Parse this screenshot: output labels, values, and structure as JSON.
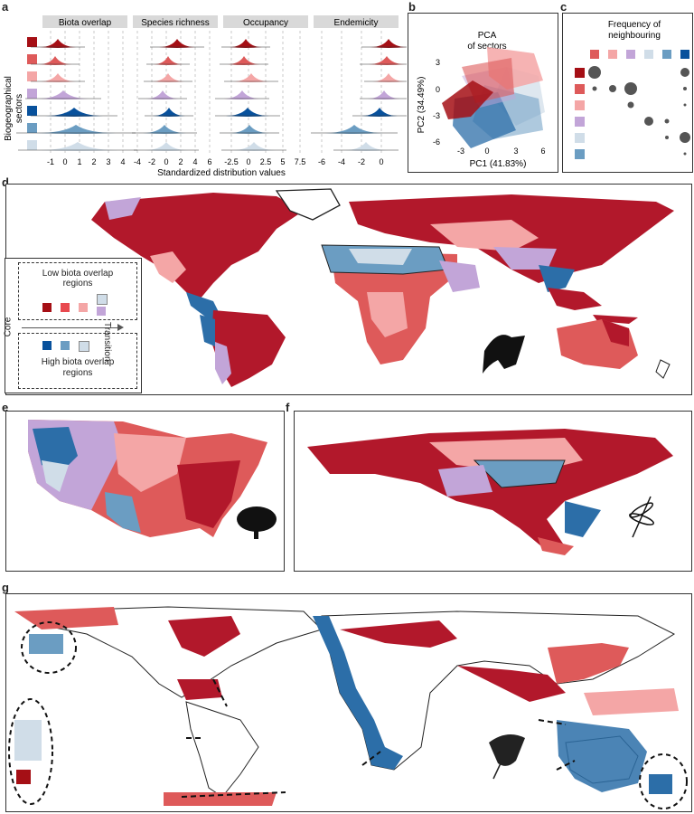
{
  "panels": {
    "a": "a",
    "b": "b",
    "c": "c",
    "d": "d",
    "e": "e",
    "f": "f",
    "g": "g"
  },
  "panel_a": {
    "facet_titles": [
      "Biota overlap",
      "Species richness",
      "Occupancy",
      "Endemicity"
    ],
    "ylabel_line1": "Biogeographical",
    "ylabel_line2": "sectors",
    "xlabel": "Standardized distribution values",
    "ticks": [
      [
        "-1",
        "0",
        "1",
        "2",
        "3",
        "4"
      ],
      [
        "-4",
        "-2",
        "0",
        "2",
        "4",
        "6"
      ],
      [
        "-2.5",
        "0",
        "2.5",
        "5",
        "7.5"
      ],
      [
        "-6",
        "-4",
        "-2",
        "0"
      ]
    ],
    "sector_colors": [
      "#a50f15",
      "#de5a5a",
      "#f4a6a6",
      "#c2a5d8",
      "#08519c",
      "#6b9dc2",
      "#d0dde8"
    ]
  },
  "panel_b": {
    "title_line1": "PCA",
    "title_line2": "of sectors",
    "xlabel": "PC1 (41.83%)",
    "ylabel": "PC2 (34.49%)",
    "xticks": [
      "-3",
      "0",
      "3",
      "6"
    ],
    "yticks": [
      "3",
      "0",
      "-3",
      "-6"
    ]
  },
  "panel_c": {
    "title_line1": "Frequency of",
    "title_line2": "neighbouring"
  },
  "legend_d": {
    "low_line1": "Low biota overlap",
    "low_line2": "regions",
    "high_line1": "High biota overlap",
    "high_line2": "regions",
    "core": "Core",
    "transition": "Transition"
  }
}
